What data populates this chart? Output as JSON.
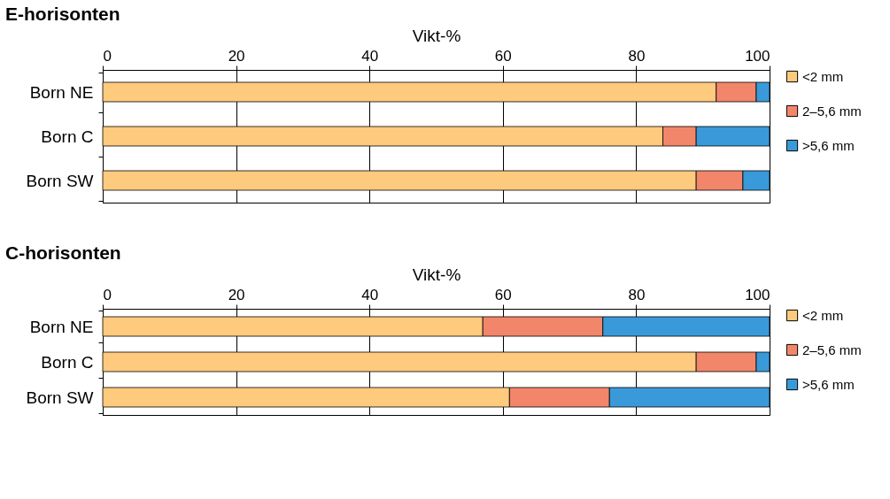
{
  "chart_data": [
    {
      "type": "bar",
      "orientation": "horizontal",
      "stacked": true,
      "title": "E-horisonten",
      "xlabel": "Vikt-%",
      "categories": [
        "Born NE",
        "Born C",
        "Born SW"
      ],
      "series": [
        {
          "name": "<2 mm",
          "color": "#fdca7e",
          "values": [
            92,
            84,
            89
          ]
        },
        {
          "name": "2–5,6 mm",
          "color": "#f2866a",
          "values": [
            6,
            5,
            7
          ]
        },
        {
          "name": ">5,6 mm",
          "color": "#3a9ad9",
          "values": [
            2,
            11,
            4
          ]
        }
      ],
      "xlim": [
        0,
        100
      ],
      "xticks": [
        0,
        20,
        40,
        60,
        80,
        100
      ],
      "grid": "x",
      "legend": "right"
    },
    {
      "type": "bar",
      "orientation": "horizontal",
      "stacked": true,
      "title": "C-horisonten",
      "xlabel": "Vikt-%",
      "categories": [
        "Born NE",
        "Born C",
        "Born SW"
      ],
      "series": [
        {
          "name": "<2 mm",
          "color": "#fdca7e",
          "values": [
            57,
            89,
            61
          ]
        },
        {
          "name": "2–5,6 mm",
          "color": "#f2866a",
          "values": [
            18,
            9,
            15
          ]
        },
        {
          "name": ">5,6 mm",
          "color": "#3a9ad9",
          "values": [
            25,
            2,
            24
          ]
        }
      ],
      "xlim": [
        0,
        100
      ],
      "xticks": [
        0,
        20,
        40,
        60,
        80,
        100
      ],
      "grid": "x",
      "legend": "right"
    }
  ]
}
